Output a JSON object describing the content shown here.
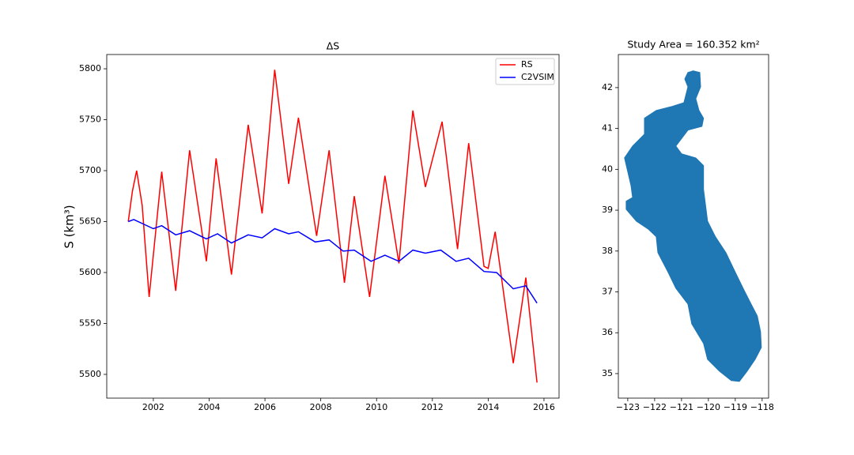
{
  "chart_data": [
    {
      "type": "line",
      "title": "ΔS",
      "y_label": "S (km³)",
      "xlim": [
        2000.33,
        2016.54
      ],
      "xticks": [
        2002,
        2004,
        2006,
        2008,
        2010,
        2012,
        2014,
        2016
      ],
      "ylim": [
        5476.7,
        5814
      ],
      "yticks": [
        5500,
        5550,
        5600,
        5650,
        5700,
        5750,
        5800
      ],
      "legend": "upper-right",
      "series": [
        {
          "name": "RS",
          "color": "#ff0000",
          "x": [
            2001.1,
            2001.25,
            2001.4,
            2001.6,
            2001.85,
            2002.3,
            2002.8,
            2003.3,
            2003.9,
            2004.25,
            2004.8,
            2005.4,
            2005.9,
            2006.35,
            2006.85,
            2007.2,
            2007.85,
            2008.3,
            2008.85,
            2009.2,
            2009.75,
            2010.3,
            2010.8,
            2011.3,
            2011.75,
            2012.35,
            2012.9,
            2013.3,
            2013.85,
            2014.0,
            2014.25,
            2014.9,
            2015.35,
            2015.75
          ],
          "values": [
            5650,
            5680,
            5700,
            5666,
            5576,
            5699,
            5582,
            5720,
            5611,
            5712,
            5598,
            5745,
            5658,
            5799,
            5687,
            5752,
            5636,
            5720,
            5590,
            5675,
            5576,
            5695,
            5609,
            5759,
            5684,
            5748,
            5623,
            5727,
            5606,
            5604,
            5640,
            5511,
            5595,
            5492
          ]
        },
        {
          "name": "C2VSIM",
          "color": "#0000ff",
          "x": [
            2001.1,
            2001.3,
            2002.0,
            2002.3,
            2002.8,
            2003.3,
            2003.9,
            2004.3,
            2004.8,
            2005.4,
            2005.9,
            2006.35,
            2006.85,
            2007.2,
            2007.8,
            2008.3,
            2008.8,
            2009.2,
            2009.8,
            2010.3,
            2010.8,
            2011.3,
            2011.75,
            2012.3,
            2012.85,
            2013.3,
            2013.85,
            2014.3,
            2014.9,
            2015.35,
            2015.75
          ],
          "values": [
            5650,
            5652,
            5643,
            5646,
            5637,
            5641,
            5633,
            5638,
            5629,
            5637,
            5634,
            5643,
            5638,
            5640,
            5630,
            5632,
            5621,
            5622,
            5611,
            5617,
            5611,
            5622,
            5619,
            5622,
            5611,
            5614,
            5601,
            5600,
            5584,
            5587,
            5570
          ]
        }
      ]
    },
    {
      "type": "polygon",
      "title": "Study Area = 160.352 km²",
      "color": "#1f77b4",
      "xlim": [
        -123.35,
        -117.76
      ],
      "xticks": [
        {
          "value": -123,
          "label": "−123"
        },
        {
          "value": -122,
          "label": "−122"
        },
        {
          "value": -121,
          "label": "−121"
        },
        {
          "value": -120,
          "label": "−120"
        },
        {
          "value": -119,
          "label": "−119"
        },
        {
          "value": -118,
          "label": "−118"
        }
      ],
      "ylim": [
        34.4,
        42.81
      ],
      "yticks": [
        35,
        36,
        37,
        38,
        39,
        40,
        41,
        42
      ],
      "x": [
        -120.56,
        -120.32,
        -120.29,
        -120.47,
        -120.35,
        -120.18,
        -120.24,
        -120.76,
        -121.21,
        -121.0,
        -120.47,
        -120.18,
        -120.18,
        -120.03,
        -119.74,
        -119.35,
        -119.0,
        -118.71,
        -118.41,
        -118.18,
        -118.06,
        -118.03,
        -118.26,
        -118.56,
        -118.85,
        -119.15,
        -119.59,
        -120.03,
        -120.18,
        -120.62,
        -120.76,
        -121.21,
        -121.5,
        -121.88,
        -121.94,
        -122.24,
        -122.68,
        -123.06,
        -123.06,
        -122.82,
        -122.88,
        -123.12,
        -122.82,
        -122.38,
        -122.38,
        -121.94,
        -121.35,
        -120.91,
        -120.76,
        -120.88,
        -120.76
      ],
      "values": [
        42.41,
        42.37,
        42.02,
        41.73,
        41.44,
        41.25,
        41.05,
        40.96,
        40.57,
        40.38,
        40.28,
        40.09,
        39.51,
        38.73,
        38.35,
        37.96,
        37.48,
        37.09,
        36.7,
        36.41,
        36.03,
        35.64,
        35.35,
        35.06,
        34.81,
        34.83,
        35.06,
        35.35,
        35.74,
        36.22,
        36.7,
        37.09,
        37.48,
        37.96,
        38.35,
        38.54,
        38.73,
        39.02,
        39.22,
        39.31,
        39.6,
        40.28,
        40.57,
        40.86,
        41.25,
        41.44,
        41.54,
        41.63,
        42.02,
        42.21,
        42.37
      ]
    }
  ]
}
